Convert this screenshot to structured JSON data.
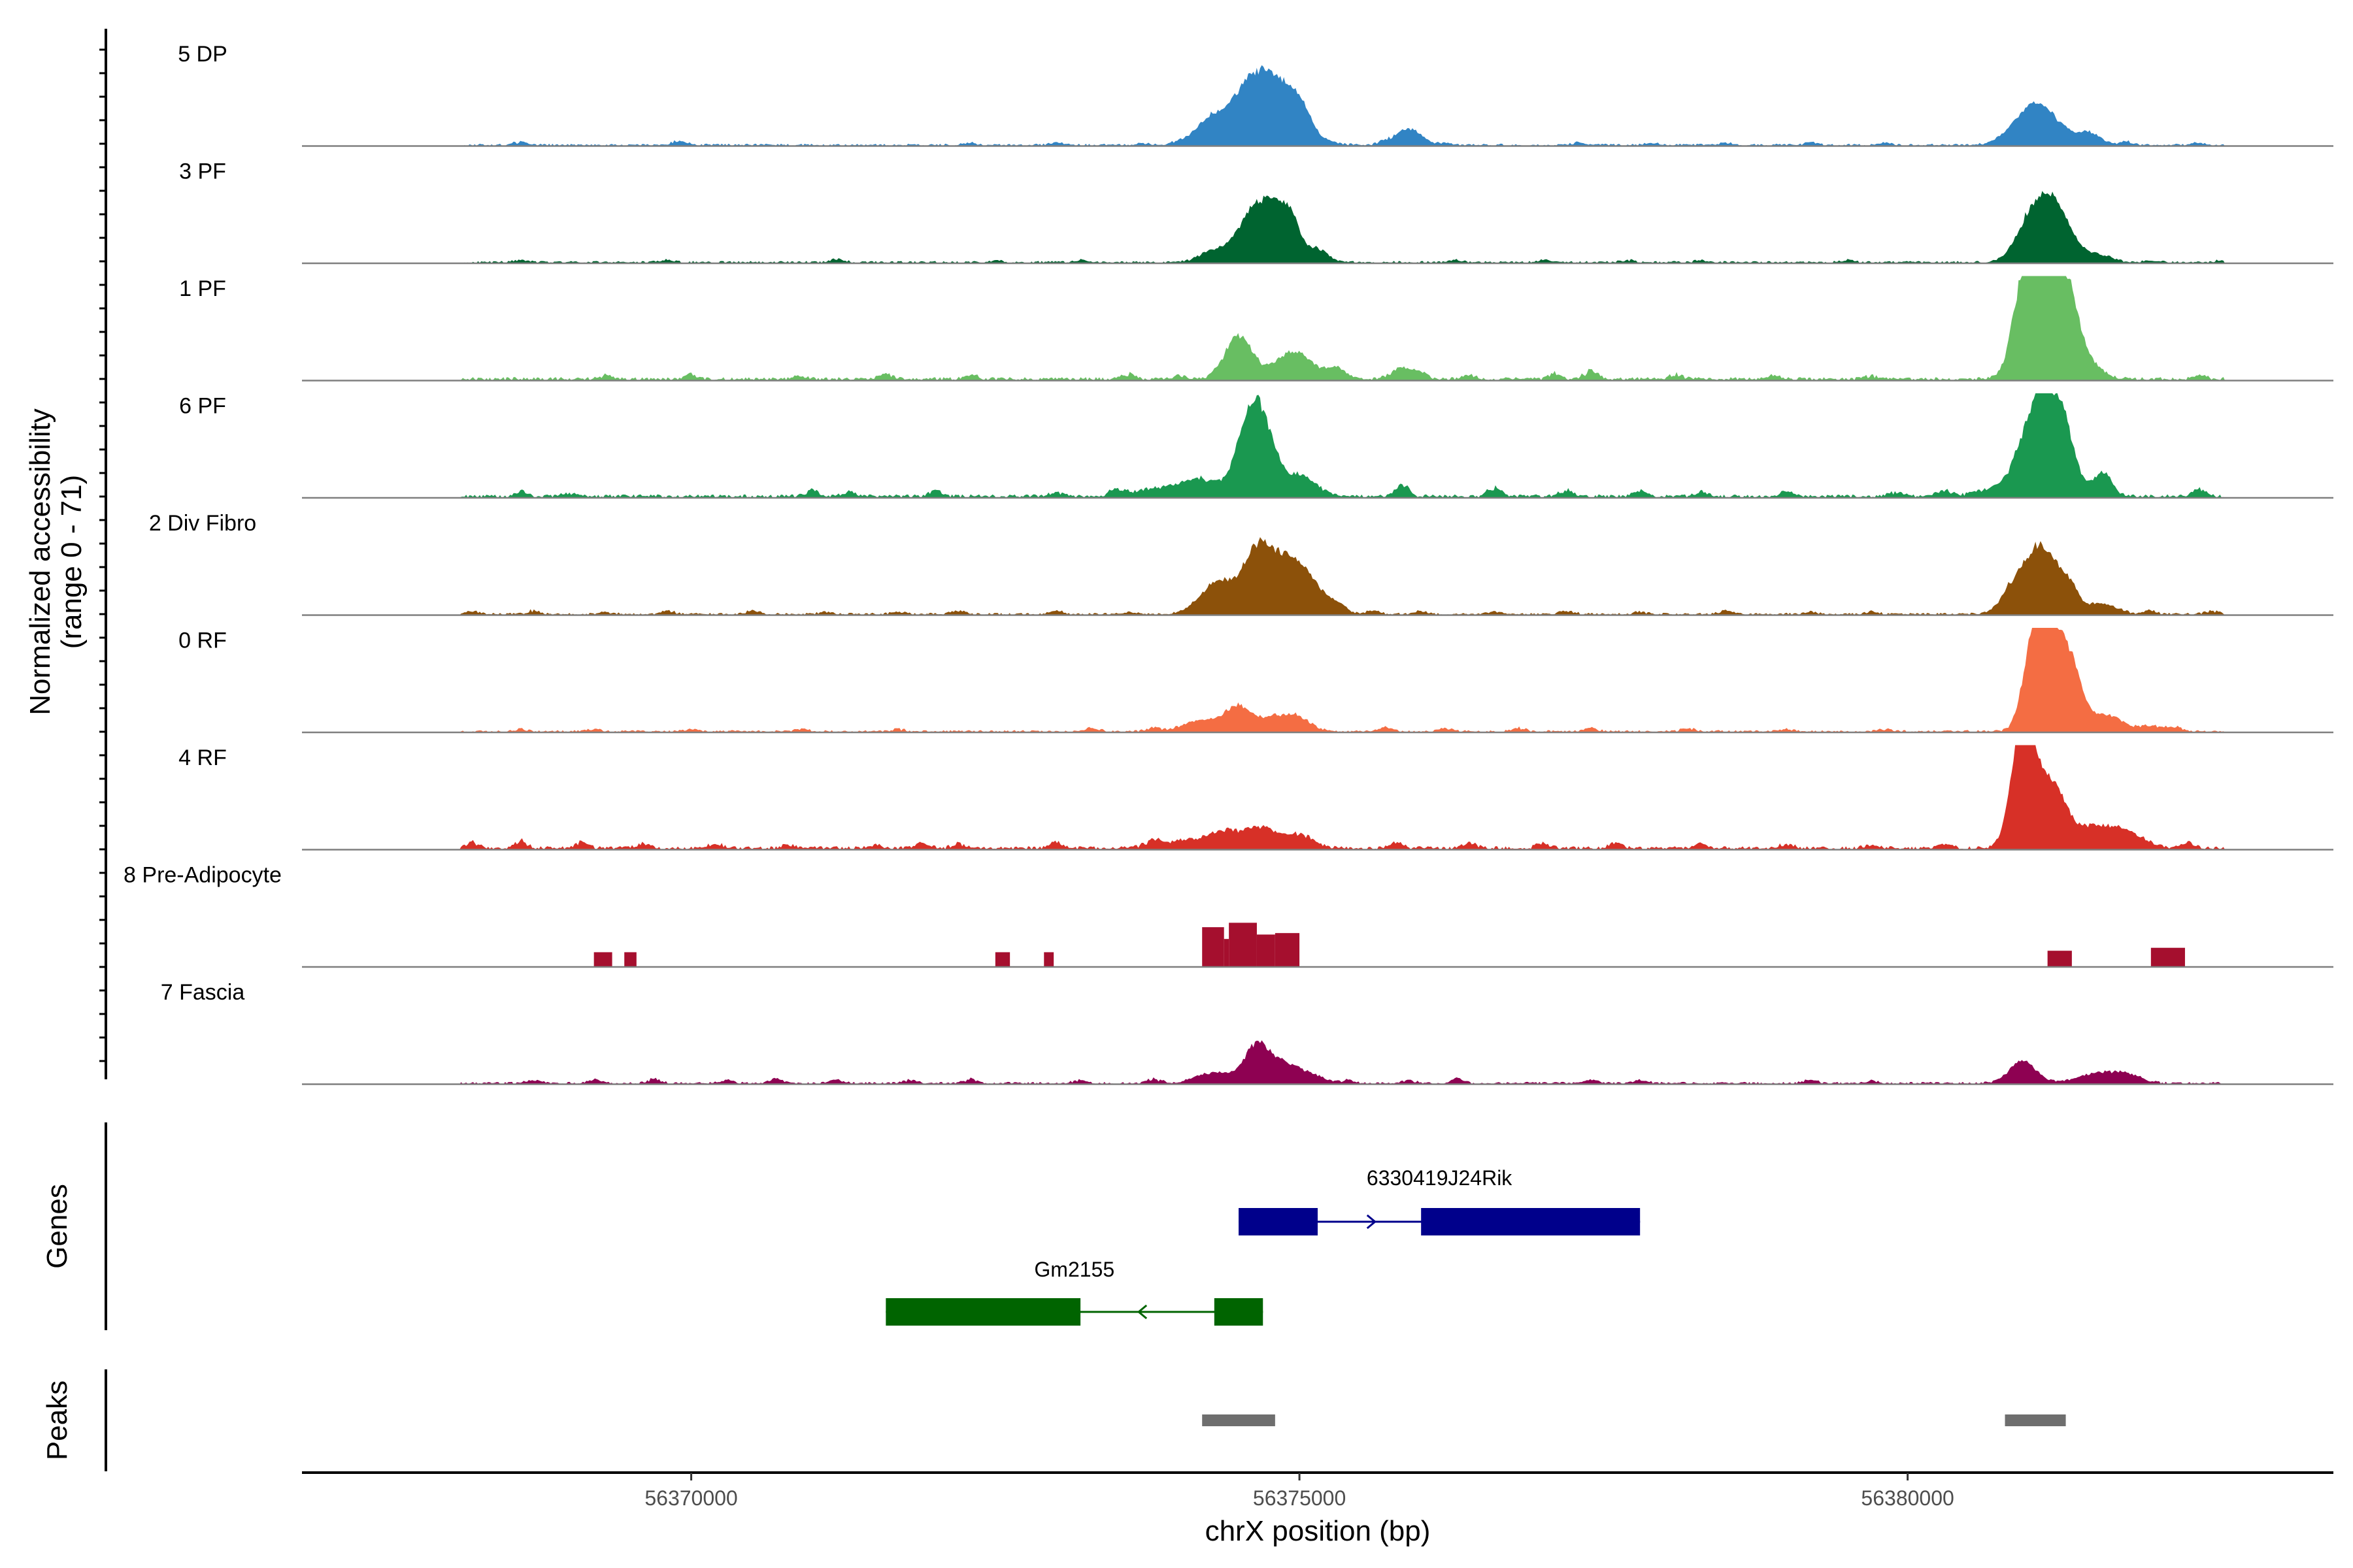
{
  "chart_data": {
    "type": "area",
    "title": "",
    "ylabel_lines": [
      "Normalized accessibility",
      "(range 0 - 71)"
    ],
    "ylim": [
      0,
      71
    ],
    "xlabel": "chrX position (bp)",
    "xlim": [
      56366800,
      56383500
    ],
    "x_ticks": [
      56370000,
      56375000,
      56380000
    ],
    "x_tick_labels": [
      "56370000",
      "56375000",
      "56380000"
    ],
    "tracks": [
      {
        "name": "5 DP",
        "color": "#3184C4",
        "background": 2,
        "noise": [
          [
            56368600,
            3
          ],
          [
            56369900,
            4
          ],
          [
            56372300,
            2
          ],
          [
            56373000,
            2
          ],
          [
            56373700,
            2
          ],
          [
            56374000,
            2
          ],
          [
            56375700,
            3
          ],
          [
            56376200,
            2
          ],
          [
            56377300,
            2
          ],
          [
            56377900,
            2
          ],
          [
            56378500,
            2
          ],
          [
            56379200,
            2
          ],
          [
            56379800,
            2
          ],
          [
            56381800,
            3
          ],
          [
            56382400,
            2
          ],
          [
            56382700,
            2
          ]
        ],
        "peaks": [
          [
            56374250,
            14,
            120
          ],
          [
            56374700,
            57,
            220
          ],
          [
            56375000,
            15,
            90
          ],
          [
            56375900,
            12,
            100
          ],
          [
            56381000,
            12,
            150
          ],
          [
            56381100,
            20,
            180
          ],
          [
            56381500,
            8,
            90
          ]
        ]
      },
      {
        "name": "3 PF",
        "color": "#006430",
        "background": 2,
        "noise": [
          [
            56368600,
            2
          ],
          [
            56369800,
            2
          ],
          [
            56371200,
            3
          ],
          [
            56372500,
            2
          ],
          [
            56373200,
            2
          ],
          [
            56376300,
            2
          ],
          [
            56377000,
            2
          ],
          [
            56377700,
            2
          ],
          [
            56378300,
            2
          ],
          [
            56379500,
            2
          ],
          [
            56382000,
            2
          ],
          [
            56382600,
            2
          ]
        ],
        "peaks": [
          [
            56374300,
            8,
            120
          ],
          [
            56374650,
            41,
            140
          ],
          [
            56374850,
            25,
            100
          ],
          [
            56374950,
            16,
            70
          ],
          [
            56375150,
            10,
            80
          ],
          [
            56381050,
            40,
            130
          ],
          [
            56381250,
            30,
            110
          ],
          [
            56381550,
            6,
            120
          ]
        ]
      },
      {
        "name": "1 PF",
        "color": "#68BE62",
        "background": 3,
        "noise": [
          [
            56369300,
            3
          ],
          [
            56370000,
            4
          ],
          [
            56370900,
            3
          ],
          [
            56371600,
            5
          ],
          [
            56372300,
            4
          ],
          [
            56373600,
            4
          ],
          [
            56374000,
            3
          ],
          [
            56376000,
            4
          ],
          [
            56376400,
            3
          ],
          [
            56377100,
            5
          ],
          [
            56377400,
            8
          ],
          [
            56378100,
            4
          ],
          [
            56378900,
            3
          ],
          [
            56379700,
            3
          ],
          [
            56382400,
            4
          ],
          [
            56382700,
            3
          ]
        ],
        "peaks": [
          [
            56374500,
            32,
            110
          ],
          [
            56374950,
            20,
            150
          ],
          [
            56375300,
            8,
            80
          ],
          [
            56375850,
            8,
            90
          ],
          [
            56380950,
            50,
            90
          ],
          [
            56381100,
            71,
            130
          ],
          [
            56381300,
            62,
            110
          ],
          [
            56381550,
            6,
            90
          ]
        ]
      },
      {
        "name": "6 PF",
        "color": "#1A9850",
        "background": 3,
        "noise": [
          [
            56367800,
            5
          ],
          [
            56368600,
            4
          ],
          [
            56369000,
            3
          ],
          [
            56371000,
            6
          ],
          [
            56371300,
            4
          ],
          [
            56372000,
            5
          ],
          [
            56373000,
            4
          ],
          [
            56373500,
            5
          ],
          [
            56375850,
            10
          ],
          [
            56376600,
            8
          ],
          [
            56377200,
            6
          ],
          [
            56377800,
            6
          ],
          [
            56378300,
            4
          ],
          [
            56379000,
            5
          ],
          [
            56379900,
            4
          ],
          [
            56380300,
            6
          ],
          [
            56382400,
            6
          ],
          [
            56382700,
            4
          ]
        ],
        "peaks": [
          [
            56373900,
            6,
            250
          ],
          [
            56374200,
            10,
            150
          ],
          [
            56374600,
            62,
            110
          ],
          [
            56374750,
            24,
            90
          ],
          [
            56375000,
            15,
            130
          ],
          [
            56381000,
            40,
            120
          ],
          [
            56381150,
            57,
            110
          ],
          [
            56381300,
            35,
            90
          ],
          [
            56381600,
            17,
            80
          ],
          [
            56380700,
            5,
            150
          ]
        ]
      },
      {
        "name": "2 Div Fibro",
        "color": "#8C510A",
        "background": 2,
        "noise": [
          [
            56367800,
            3
          ],
          [
            56368200,
            3
          ],
          [
            56368700,
            3
          ],
          [
            56369300,
            2
          ],
          [
            56369800,
            3
          ],
          [
            56370500,
            3
          ],
          [
            56371100,
            2
          ],
          [
            56371700,
            2
          ],
          [
            56372200,
            3
          ],
          [
            56373000,
            3
          ],
          [
            56373600,
            2
          ],
          [
            56375600,
            3
          ],
          [
            56376000,
            3
          ],
          [
            56376600,
            2
          ],
          [
            56377200,
            3
          ],
          [
            56377800,
            2
          ],
          [
            56378500,
            3
          ],
          [
            56379200,
            2
          ],
          [
            56379700,
            2
          ],
          [
            56382000,
            3
          ],
          [
            56382500,
            3
          ]
        ],
        "peaks": [
          [
            56374350,
            25,
            150
          ],
          [
            56374650,
            43,
            100
          ],
          [
            56374850,
            33,
            110
          ],
          [
            56375050,
            28,
            120
          ],
          [
            56375300,
            7,
            80
          ],
          [
            56380900,
            25,
            110
          ],
          [
            56381100,
            44,
            100
          ],
          [
            56381300,
            25,
            90
          ],
          [
            56381600,
            8,
            120
          ]
        ]
      },
      {
        "name": "0 RF",
        "color": "#F46D43",
        "background": 2,
        "noise": [
          [
            56368600,
            2
          ],
          [
            56369200,
            2
          ],
          [
            56370000,
            2
          ],
          [
            56370900,
            2
          ],
          [
            56371700,
            2
          ],
          [
            56373300,
            3
          ],
          [
            56373800,
            3
          ],
          [
            56375700,
            4
          ],
          [
            56376200,
            3
          ],
          [
            56376800,
            3
          ],
          [
            56377400,
            3
          ],
          [
            56378200,
            3
          ],
          [
            56379000,
            2
          ],
          [
            56379800,
            2
          ],
          [
            56382200,
            3
          ]
        ],
        "peaks": [
          [
            56374200,
            8,
            150
          ],
          [
            56374500,
            18,
            110
          ],
          [
            56374800,
            10,
            120
          ],
          [
            56375000,
            9,
            100
          ],
          [
            56381050,
            68,
            90
          ],
          [
            56381200,
            55,
            110
          ],
          [
            56381350,
            35,
            100
          ],
          [
            56381650,
            12,
            110
          ],
          [
            56382000,
            4,
            120
          ]
        ]
      },
      {
        "name": "4 RF",
        "color": "#D73027",
        "background": 3,
        "noise": [
          [
            56367800,
            2
          ],
          [
            56368200,
            5
          ],
          [
            56368600,
            6
          ],
          [
            56369100,
            5
          ],
          [
            56369600,
            4
          ],
          [
            56370200,
            4
          ],
          [
            56370800,
            3
          ],
          [
            56371500,
            3
          ],
          [
            56371900,
            5
          ],
          [
            56372200,
            4
          ],
          [
            56373000,
            5
          ],
          [
            56373800,
            4
          ],
          [
            56375800,
            6
          ],
          [
            56376400,
            4
          ],
          [
            56377000,
            4
          ],
          [
            56377600,
            5
          ],
          [
            56378300,
            4
          ],
          [
            56379000,
            4
          ],
          [
            56379700,
            3
          ],
          [
            56380300,
            4
          ],
          [
            56382300,
            5
          ]
        ],
        "peaks": [
          [
            56374000,
            5,
            200
          ],
          [
            56374400,
            12,
            150
          ],
          [
            56374700,
            14,
            120
          ],
          [
            56375000,
            10,
            110
          ],
          [
            56380900,
            45,
            80
          ],
          [
            56381000,
            64,
            90
          ],
          [
            56381200,
            40,
            100
          ],
          [
            56381500,
            15,
            180
          ],
          [
            56381800,
            10,
            150
          ]
        ]
      },
      {
        "name": "8 Pre-Adipocyte",
        "color": "#A50F2E",
        "background": 0,
        "style": "blocks",
        "blocks": [
          [
            56369200,
            56369350,
            10
          ],
          [
            56369450,
            56369550,
            10
          ],
          [
            56372500,
            56372620,
            10
          ],
          [
            56372900,
            56372980,
            10
          ],
          [
            56374200,
            56374380,
            27
          ],
          [
            56374380,
            56374420,
            19
          ],
          [
            56374420,
            56374650,
            30
          ],
          [
            56374650,
            56374800,
            22
          ],
          [
            56374800,
            56375000,
            23
          ],
          [
            56381150,
            56381350,
            11
          ],
          [
            56382000,
            56382280,
            13
          ]
        ]
      },
      {
        "name": "7 Fascia",
        "color": "#8E0152",
        "background": 2,
        "noise": [
          [
            56368000,
            3
          ],
          [
            56368700,
            3
          ],
          [
            56369200,
            3
          ],
          [
            56369700,
            4
          ],
          [
            56370300,
            3
          ],
          [
            56370700,
            4
          ],
          [
            56371200,
            3
          ],
          [
            56371800,
            3
          ],
          [
            56372300,
            4
          ],
          [
            56373200,
            3
          ],
          [
            56373800,
            4
          ],
          [
            56375400,
            3
          ],
          [
            56375900,
            3
          ],
          [
            56376300,
            4
          ],
          [
            56377400,
            3
          ],
          [
            56377800,
            3
          ],
          [
            56379200,
            3
          ],
          [
            56379700,
            2
          ]
        ],
        "peaks": [
          [
            56374300,
            8,
            150
          ],
          [
            56374650,
            28,
            100
          ],
          [
            56374850,
            12,
            100
          ],
          [
            56375050,
            8,
            120
          ],
          [
            56380950,
            16,
            110
          ],
          [
            56381550,
            7,
            150
          ],
          [
            56381800,
            6,
            120
          ]
        ]
      }
    ],
    "genes": [
      {
        "name": "6330419J24Rik",
        "color": "#00008B",
        "strand": "+",
        "start": 56374500,
        "end": 56377800,
        "exons": [
          [
            56374500,
            56375150
          ],
          [
            56376000,
            56377800
          ]
        ],
        "arrows": [
          56374550,
          56375600
        ]
      },
      {
        "name": "Gm2155",
        "color": "#006400",
        "strand": "-",
        "start": 56371600,
        "end": 56374700,
        "exons": [
          [
            56371600,
            56373200
          ],
          [
            56374300,
            56374700
          ]
        ],
        "arrows": [
          56373700
        ]
      }
    ],
    "peaks_track": [
      [
        56374200,
        56374800
      ],
      [
        56380800,
        56381300
      ]
    ],
    "peaks_color": "#6E6E6E"
  },
  "panel_labels": {
    "genes": "Genes",
    "peaks": "Peaks"
  }
}
